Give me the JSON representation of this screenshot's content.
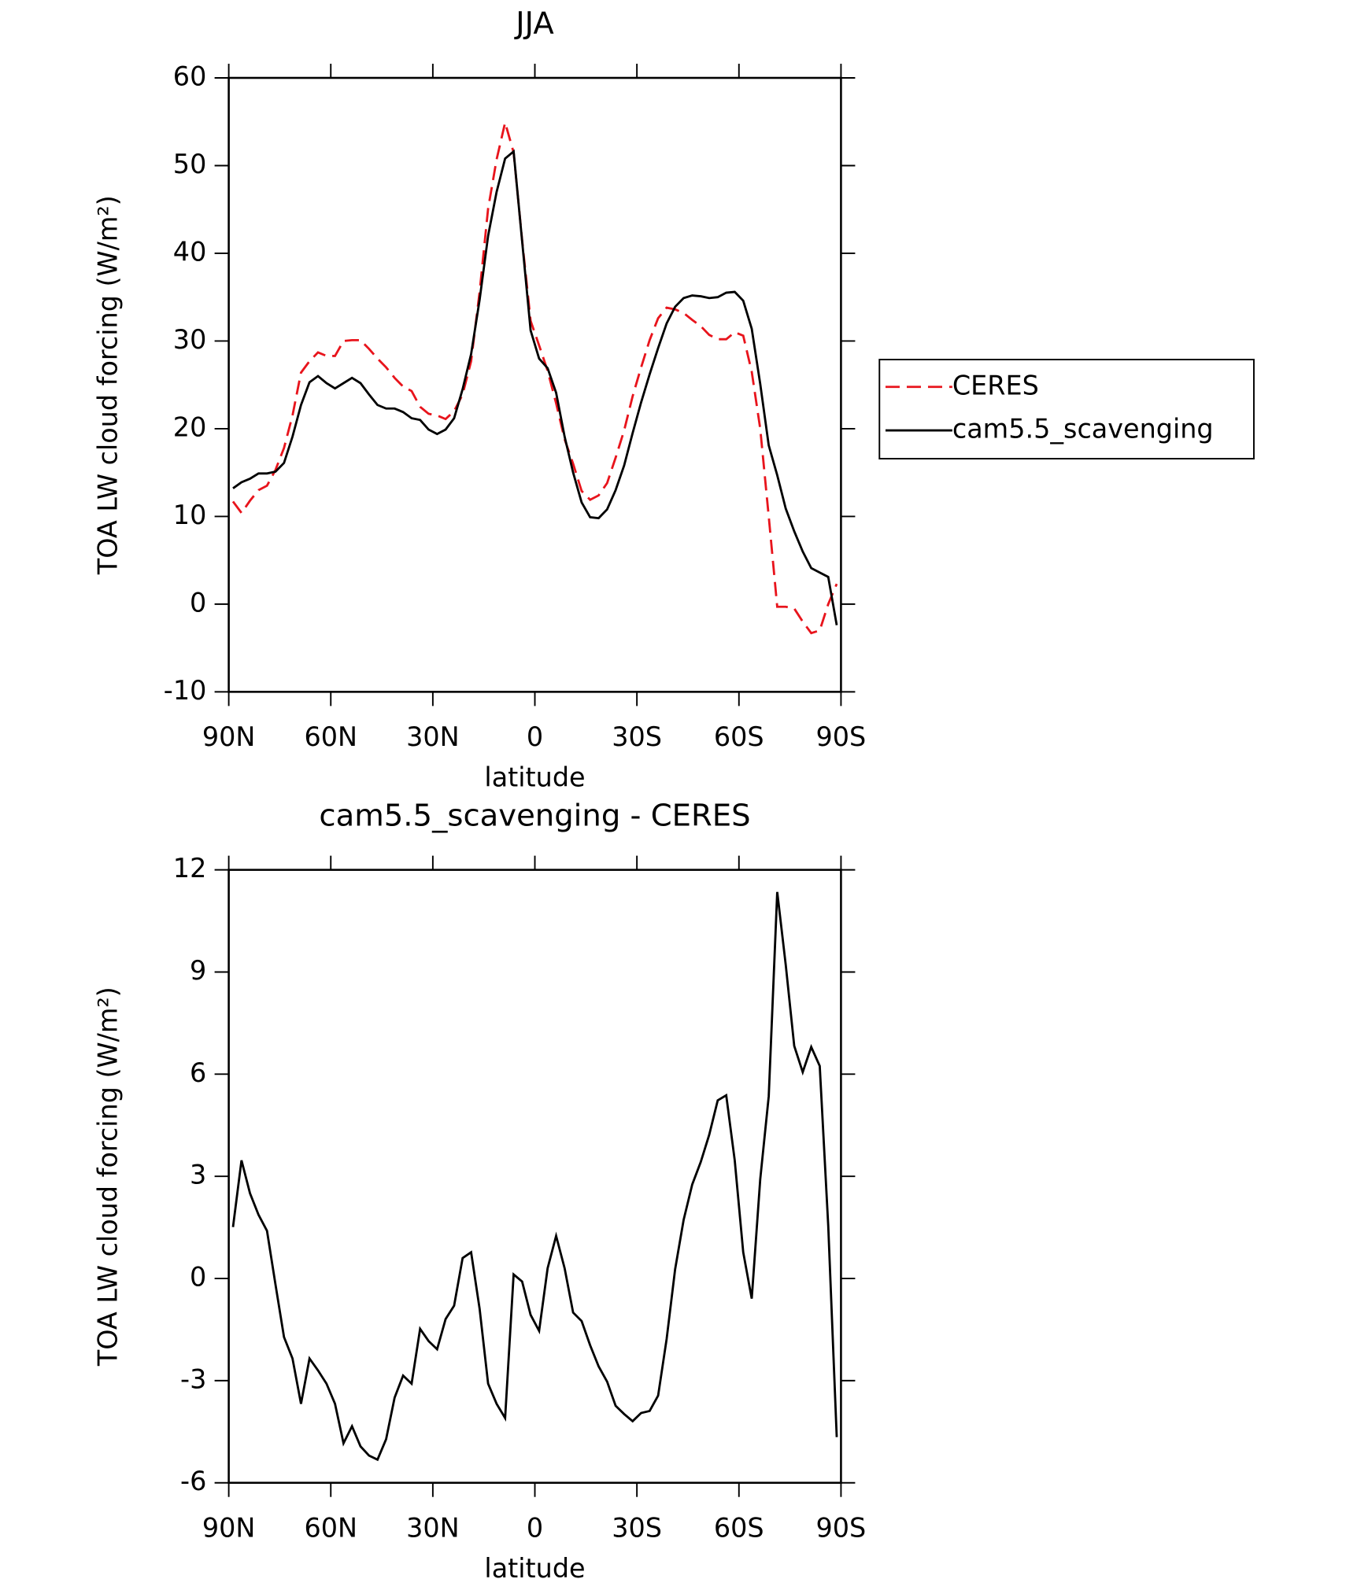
{
  "chart_data": [
    {
      "type": "line",
      "title": "JJA",
      "x_label": "latitude",
      "y_label": "TOA LW cloud forcing (W/m²)",
      "x": [
        88.75,
        86.25,
        83.75,
        81.25,
        78.75,
        76.25,
        73.75,
        71.25,
        68.75,
        66.25,
        63.75,
        61.25,
        58.75,
        56.25,
        53.75,
        51.25,
        48.75,
        46.25,
        43.75,
        41.25,
        38.75,
        36.25,
        33.75,
        31.25,
        28.75,
        26.25,
        23.75,
        21.25,
        18.75,
        16.25,
        13.75,
        11.25,
        8.75,
        6.25,
        3.75,
        1.25,
        -1.25,
        -3.75,
        -6.25,
        -8.75,
        -11.25,
        -13.75,
        -16.25,
        -18.75,
        -21.25,
        -23.75,
        -26.25,
        -28.75,
        -31.25,
        -33.75,
        -36.25,
        -38.75,
        -41.25,
        -43.75,
        -46.25,
        -48.75,
        -51.25,
        -53.75,
        -56.25,
        -58.75,
        -61.25,
        -63.75,
        -66.25,
        -68.75,
        -71.25,
        -73.75,
        -76.25,
        -78.75,
        -81.25,
        -83.75,
        -86.25,
        -88.75
      ],
      "series": [
        {
          "name": "CERES",
          "color": "#e8141c",
          "dash": true,
          "values": [
            11.7,
            10.4,
            11.8,
            13.0,
            13.5,
            15.3,
            17.8,
            21.5,
            26.4,
            27.7,
            28.7,
            28.3,
            28.3,
            30.0,
            30.1,
            30.1,
            29.1,
            28.0,
            27.0,
            25.8,
            24.8,
            24.3,
            22.5,
            21.7,
            21.5,
            21.1,
            22.0,
            23.9,
            27.7,
            35.6,
            45.1,
            50.7,
            54.9,
            51.5,
            41.5,
            32.3,
            29.5,
            26.6,
            22.9,
            18.8,
            16.0,
            12.9,
            11.9,
            12.4,
            13.8,
            16.7,
            19.8,
            23.7,
            27.0,
            30.1,
            32.6,
            33.8,
            33.6,
            33.2,
            32.4,
            31.7,
            30.7,
            30.2,
            30.2,
            31.0,
            30.6,
            26.5,
            20.0,
            10.0,
            -0.3,
            -0.3,
            -0.5,
            -2.0,
            -3.3,
            -3.0,
            0.0,
            2.3
          ]
        },
        {
          "name": "cam5.5_scavenging",
          "color": "#000000",
          "dash": false,
          "values": [
            13.2,
            13.9,
            14.3,
            14.9,
            14.9,
            15.1,
            16.1,
            19.1,
            22.7,
            25.3,
            26.0,
            25.2,
            24.6,
            25.2,
            25.8,
            25.2,
            23.9,
            22.7,
            22.3,
            22.3,
            21.9,
            21.2,
            21.0,
            19.9,
            19.4,
            19.9,
            21.2,
            24.5,
            28.5,
            34.7,
            42.0,
            47.0,
            50.8,
            51.6,
            41.4,
            31.2,
            28.0,
            26.9,
            24.1,
            19.1,
            15.0,
            11.6,
            9.9,
            9.8,
            10.8,
            13.0,
            15.8,
            19.5,
            23.0,
            26.2,
            29.2,
            32.0,
            33.9,
            34.9,
            35.2,
            35.1,
            34.9,
            35.0,
            35.5,
            35.6,
            34.6,
            31.4,
            25.1,
            18.1,
            14.7,
            10.9,
            8.3,
            6.0,
            4.1,
            3.6,
            3.1,
            -2.4
          ]
        }
      ],
      "xlim": [
        90,
        -90
      ],
      "xticks": [
        {
          "value": 90,
          "label": "90N"
        },
        {
          "value": 60,
          "label": "60N"
        },
        {
          "value": 30,
          "label": "30N"
        },
        0,
        {
          "value": -30,
          "label": "30S"
        },
        {
          "value": -60,
          "label": "60S"
        },
        {
          "value": -90,
          "label": "90S"
        }
      ],
      "ylim": [
        -10,
        60
      ],
      "yticks": [
        -10,
        0,
        10,
        20,
        30,
        40,
        50,
        60
      ],
      "legend": "right"
    },
    {
      "type": "line",
      "title": "cam5.5_scavenging - CERES",
      "x_label": "latitude",
      "y_label": "TOA LW cloud forcing (W/m²)",
      "x": [
        88.75,
        86.25,
        83.75,
        81.25,
        78.75,
        76.25,
        73.75,
        71.25,
        68.75,
        66.25,
        63.75,
        61.25,
        58.75,
        56.25,
        53.75,
        51.25,
        48.75,
        46.25,
        43.75,
        41.25,
        38.75,
        36.25,
        33.75,
        31.25,
        28.75,
        26.25,
        23.75,
        21.25,
        18.75,
        16.25,
        13.75,
        11.25,
        8.75,
        6.25,
        3.75,
        1.25,
        -1.25,
        -3.75,
        -6.25,
        -8.75,
        -11.25,
        -13.75,
        -16.25,
        -18.75,
        -21.25,
        -23.75,
        -26.25,
        -28.75,
        -31.25,
        -33.75,
        -36.25,
        -38.75,
        -41.25,
        -43.75,
        -46.25,
        -48.75,
        -51.25,
        -53.75,
        -56.25,
        -58.75,
        -61.25,
        -63.75,
        -66.25,
        -68.75,
        -71.25,
        -73.75,
        -76.25,
        -78.75,
        -81.25,
        -83.75,
        -86.25,
        -88.75
      ],
      "series": [
        {
          "color": "#000000",
          "dash": false,
          "values": [
            1.51,
            3.47,
            2.5,
            1.87,
            1.4,
            -0.18,
            -1.72,
            -2.35,
            -3.68,
            -2.35,
            -2.7,
            -3.09,
            -3.68,
            -4.84,
            -4.34,
            -4.93,
            -5.2,
            -5.32,
            -4.72,
            -3.5,
            -2.85,
            -3.09,
            -1.48,
            -1.84,
            -2.08,
            -1.19,
            -0.8,
            0.6,
            0.77,
            -0.89,
            -3.09,
            -3.68,
            -4.1,
            0.12,
            -0.09,
            -1.07,
            -1.54,
            0.3,
            1.25,
            0.3,
            -1.0,
            -1.25,
            -1.96,
            -2.58,
            -3.03,
            -3.74,
            -3.98,
            -4.19,
            -3.95,
            -3.89,
            -3.44,
            -1.78,
            0.27,
            1.72,
            2.76,
            3.42,
            4.22,
            5.23,
            5.38,
            3.47,
            0.77,
            -0.59,
            2.91,
            5.35,
            11.35,
            9.21,
            6.83,
            6.06,
            6.8,
            6.24,
            1.55,
            -4.66
          ]
        }
      ],
      "xlim": [
        90,
        -90
      ],
      "xticks": [
        {
          "value": 90,
          "label": "90N"
        },
        {
          "value": 60,
          "label": "60N"
        },
        {
          "value": 30,
          "label": "30N"
        },
        0,
        {
          "value": -30,
          "label": "30S"
        },
        {
          "value": -60,
          "label": "60S"
        },
        {
          "value": -90,
          "label": "90S"
        }
      ],
      "ylim": [
        -6,
        12
      ],
      "yticks": [
        -6,
        -3,
        0,
        3,
        6,
        9,
        12
      ]
    }
  ]
}
